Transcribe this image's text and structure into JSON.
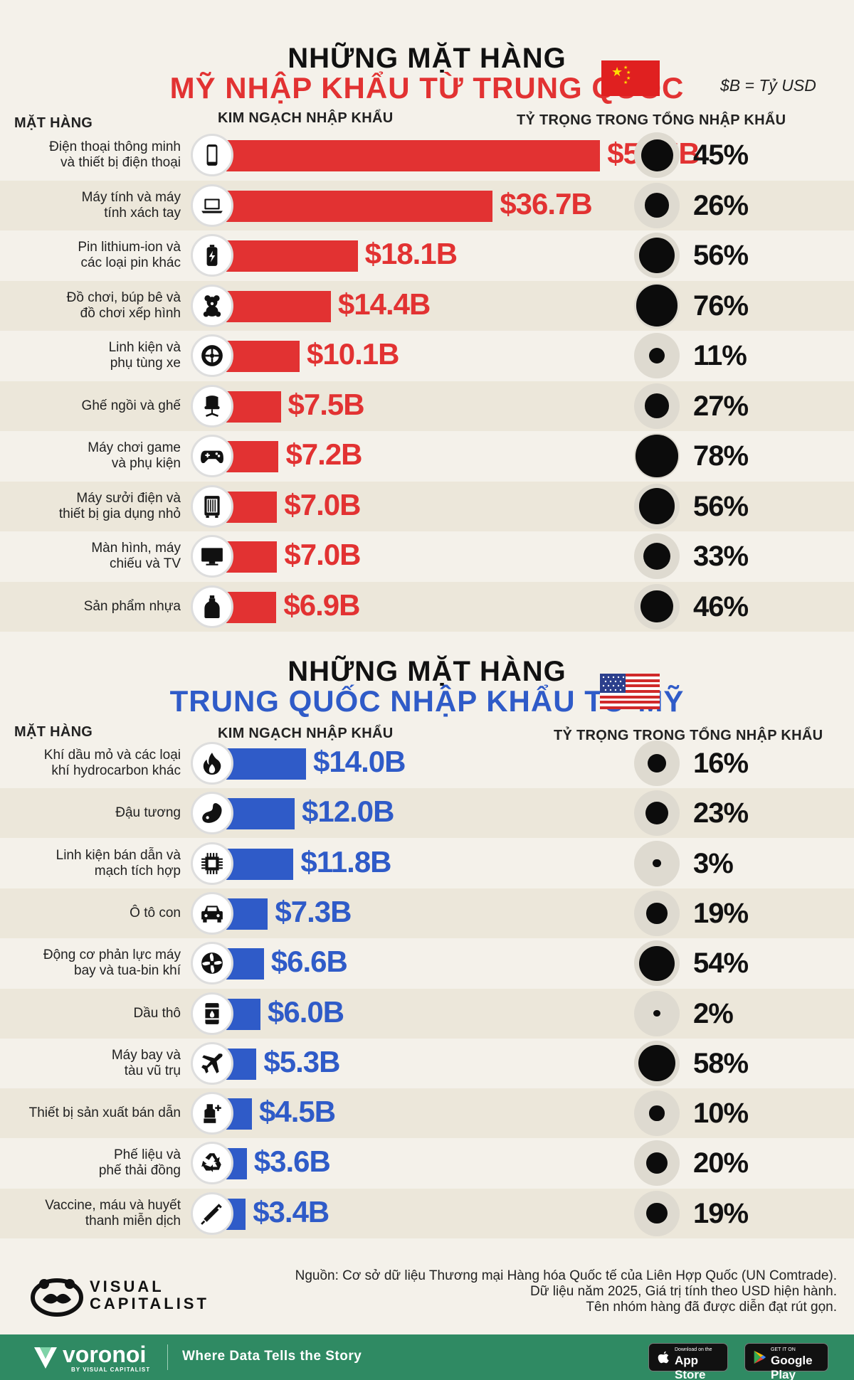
{
  "unit_note": "$B = Tỷ USD",
  "colors": {
    "red": "#e23232",
    "blue": "#2f5bc8",
    "dot": "#0c0c0c"
  },
  "sections": [
    {
      "title_line1": "NHỮNG MẶT HÀNG",
      "title_line2": "MỸ NHẬP KHẨU TỪ TRUNG QUỐC",
      "flag": "china-flag",
      "head_item": "MẶT HÀNG",
      "head_value": "KIM NGẠCH NHẬP KHẨU",
      "head_share": "TỶ TRỌNG TRONG TỔNG NHẬP KHẨU"
    },
    {
      "title_line1": "NHỮNG MẶT HÀNG",
      "title_line2": "TRUNG QUỐC NHẬP KHẨU TỪ MỸ",
      "flag": "usa-flag",
      "head_item": "MẶT HÀNG",
      "head_value": "KIM NGẠCH NHẬP KHẨU",
      "head_share": "TỶ TRỌNG TRONG TỔNG NHẬP KHẨU"
    }
  ],
  "chart_data": [
    {
      "type": "bar",
      "categories": [
        "Điện thoại thông minh\nvà thiết bị điện thoại",
        "Máy tính và máy\ntính xách tay",
        "Pin lithium-ion và\ncác loại pin khác",
        "Đồ chơi, búp bê và\nđồ chơi xếp hình",
        "Linh kiện và\nphụ tùng xe",
        "Ghế ngồi và ghế",
        "Máy chơi game\nvà phụ kiện",
        "Máy sưởi điện và\nthiết bị gia dụng nhỏ",
        "Màn hình, máy\nchiếu và TV",
        "Sản phẩm nhựa"
      ],
      "values": [
        51.5,
        36.7,
        18.1,
        14.4,
        10.1,
        7.5,
        7.2,
        7.0,
        7.0,
        6.9
      ],
      "value_labels": [
        "$51.5B",
        "$36.7B",
        "$18.1B",
        "$14.4B",
        "$10.1B",
        "$7.5B",
        "$7.2B",
        "$7.0B",
        "$7.0B",
        "$6.9B"
      ],
      "shares": [
        45,
        26,
        56,
        76,
        11,
        27,
        78,
        56,
        33,
        46
      ],
      "share_labels": [
        "45%",
        "26%",
        "56%",
        "76%",
        "11%",
        "27%",
        "78%",
        "56%",
        "33%",
        "46%"
      ],
      "icons": [
        "smartphone-icon",
        "laptop-icon",
        "battery-icon",
        "teddy-bear-icon",
        "tire-icon",
        "chair-icon",
        "gamepad-icon",
        "heater-icon",
        "tv-icon",
        "plastic-bottle-icon"
      ],
      "title": "MỸ NHẬP KHẨU TỪ TRUNG QUỐC",
      "color": "#e23232"
    },
    {
      "type": "bar",
      "categories": [
        "Khí dầu mỏ và các loại\nkhí hydrocarbon khác",
        "Đậu tương",
        "Linh kiện bán dẫn và\nmạch tích hợp",
        "Ô tô con",
        "Động cơ phản lực máy\nbay và tua-bin khí",
        "Dầu thô",
        "Máy bay và\ntàu vũ trụ",
        "Thiết bị sản xuất bán dẫn",
        "Phế liệu và\nphế thải đồng",
        "Vaccine, máu và huyết\nthanh miễn dịch"
      ],
      "values": [
        14.0,
        12.0,
        11.8,
        7.3,
        6.6,
        6.0,
        5.3,
        4.5,
        3.6,
        3.4
      ],
      "value_labels": [
        "$14.0B",
        "$12.0B",
        "$11.8B",
        "$7.3B",
        "$6.6B",
        "$6.0B",
        "$5.3B",
        "$4.5B",
        "$3.6B",
        "$3.4B"
      ],
      "shares": [
        16,
        23,
        3,
        19,
        54,
        2,
        58,
        10,
        20,
        19
      ],
      "share_labels": [
        "16%",
        "23%",
        "3%",
        "19%",
        "54%",
        "2%",
        "58%",
        "10%",
        "20%",
        "19%"
      ],
      "icons": [
        "flame-icon",
        "soybean-icon",
        "chip-icon",
        "car-icon",
        "turbine-icon",
        "oil-barrel-icon",
        "airplane-icon",
        "semiconductor-equipment-icon",
        "recycle-icon",
        "syringe-icon"
      ],
      "title": "TRUNG QUỐC NHẬP KHẨU TỪ MỸ",
      "color": "#2f5bc8"
    }
  ],
  "source": {
    "line1": "Nguồn: Cơ sở dữ liệu Thương mại Hàng hóa Quốc tế của Liên Hợp Quốc (UN Comtrade).",
    "line2": "Dữ liệu năm 2025, Giá trị tính theo USD hiện hành.",
    "line3": "Tên nhóm hàng đã được diễn đạt rút gọn."
  },
  "brand": {
    "vc_line1": "VISUAL",
    "vc_line2": "CAPITALIST",
    "footer_brand": "voronoi",
    "footer_by": "BY VISUAL CAPITALIST",
    "footer_tag": "Where Data Tells the Story",
    "appstore_small": "Download on the",
    "appstore_big": "App Store",
    "play_small": "GET IT ON",
    "play_big": "Google Play"
  }
}
